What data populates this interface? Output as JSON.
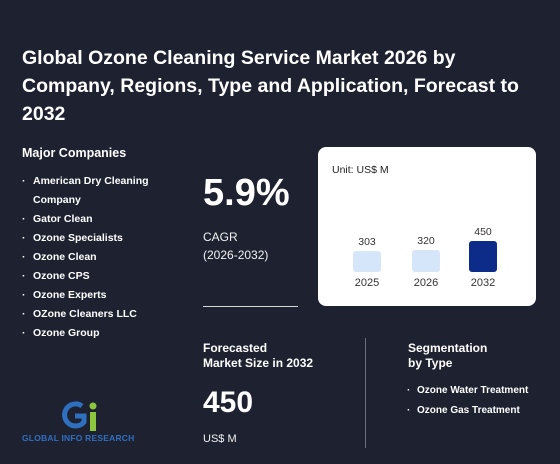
{
  "title": "Global Ozone Cleaning Service Market 2026 by Company, Regions, Type and Application, Forecast to 2032",
  "companies_heading": "Major Companies",
  "companies": [
    "American Dry Cleaning Company",
    "Gator Clean",
    "Ozone Specialists",
    "Ozone Clean",
    "Ozone CPS",
    "Ozone Experts",
    "OZone Cleaners LLC",
    "Ozone Group"
  ],
  "cagr": {
    "value": "5.9%",
    "label": "CAGR",
    "period": "(2026-2032)"
  },
  "forecast": {
    "heading_line1": "Forecasted",
    "heading_line2": "Market Size in 2032",
    "value": "450",
    "unit": "US$ M"
  },
  "segmentation": {
    "heading_line1": "Segmentation",
    "heading_line2": "by Type",
    "items": [
      "Ozone Water Treatment",
      "Ozone Gas Treatment"
    ]
  },
  "logo_text": "GLOBAL INFO RESEARCH",
  "colors": {
    "background": "#1e2130",
    "bar_light": "#d6e6fa",
    "bar_dark": "#0d2c8a",
    "logo_blue": "#2f6fc0",
    "logo_green": "#8cc63f"
  },
  "chart_data": {
    "type": "bar",
    "unit_label": "Unit: US$ M",
    "categories": [
      "2025",
      "2026",
      "2032"
    ],
    "values": [
      303,
      320,
      450
    ],
    "data_labels": [
      "303",
      "320",
      "450"
    ],
    "highlight_index": 2
  }
}
